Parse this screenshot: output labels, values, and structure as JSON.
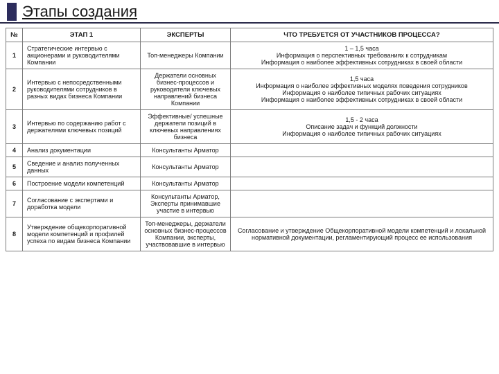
{
  "title": "Этапы создания",
  "columns": {
    "num": "№",
    "stage": "ЭТАП 1",
    "experts": "ЭКСПЕРТЫ",
    "required": "ЧТО ТРЕБУЕТСЯ ОТ УЧАСТНИКОВ ПРОЦЕССА?"
  },
  "rows": [
    {
      "num": "1",
      "stage": "Стратегические интервью с акционерами и   руководителями Компании",
      "experts": "Топ-менеджеры Компании",
      "req_l1": "1 – 1,5 часа",
      "req_l2": "Информация о перспективных требованиях к сотрудникам",
      "req_l3": "Информация о наиболее эффективных сотрудниках в своей области",
      "req_l4": ""
    },
    {
      "num": "2",
      "stage": "Интервью с непосредственными руководителями сотрудников в разных видах бизнеса Компании",
      "experts": "Держатели основных бизнес-процессов и руководители ключевых направлений бизнеса Компании",
      "req_l1": "1,5  часа",
      "req_l2": "Информация о наиболее эффективных моделях поведения сотрудников",
      "req_l3": "Информация о наиболее типичных рабочих ситуациях",
      "req_l4": "Информация о наиболее эффективных сотрудниках в своей области"
    },
    {
      "num": "3",
      "stage": "Интервью по содержанию работ с держателями ключевых позиций",
      "experts": "Эффективные/ успешные держатели позиций в ключевых направлениях бизнеса",
      "req_l1": "1,5 - 2 часа",
      "req_l2": "Описание задач и функций должности",
      "req_l3": "Информация о наиболее типичных рабочих ситуациях",
      "req_l4": ""
    },
    {
      "num": "4",
      "stage": "Анализ документации",
      "experts": "Консультанты Арматор",
      "req_l1": "",
      "req_l2": "",
      "req_l3": "",
      "req_l4": ""
    },
    {
      "num": "5",
      "stage": "Сведение и анализ полученных данных",
      "experts": "Консультанты Арматор",
      "req_l1": "",
      "req_l2": "",
      "req_l3": "",
      "req_l4": ""
    },
    {
      "num": "6",
      "stage": "Построение модели компетенций",
      "experts": "Консультанты Арматор",
      "req_l1": "",
      "req_l2": "",
      "req_l3": "",
      "req_l4": ""
    },
    {
      "num": "7",
      "stage": "Согласование с экспертами и доработка модели",
      "experts": "Консультанты Арматор, Эксперты принимавшие участие в интервью",
      "req_l1": "",
      "req_l2": "",
      "req_l3": "",
      "req_l4": ""
    },
    {
      "num": "8",
      "stage": "Утверждение общекорпоративной модели компетенций и профилей успеха по видам бизнеса Компании",
      "experts": "Топ-менеджеры, держатели основных бизнес-процессов Компании, эксперты, участвовавшие в интервью",
      "req_l1": "Согласование и утверждение Общекорпоративной модели компетенций и локальной нормативной документации, регламентирующий процесс ее использования",
      "req_l2": "",
      "req_l3": "",
      "req_l4": ""
    }
  ]
}
